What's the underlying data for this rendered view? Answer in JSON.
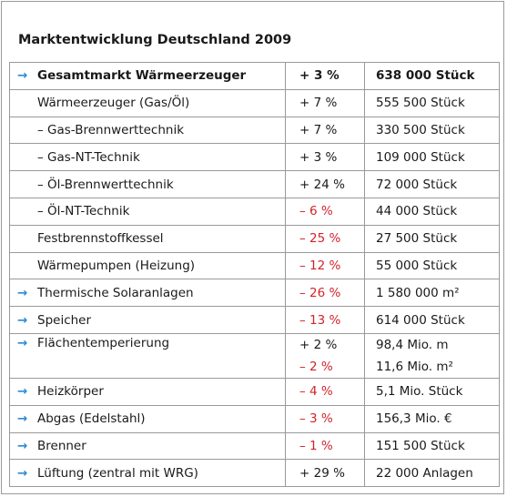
{
  "header": {
    "title": "Marktentwicklung Deutschland 2009"
  },
  "table": {
    "negative_color": "#d2232a",
    "arrow_color": "#2b8ad6",
    "rows": [
      {
        "label": "Gesamtmarkt Wärmeerzeuger",
        "arrow": true,
        "bold": true,
        "change": [
          "+ 3 %"
        ],
        "amount": [
          "638 000 Stück"
        ]
      },
      {
        "label": "Wärmeerzeuger (Gas/Öl)",
        "change": [
          "+ 7 %"
        ],
        "amount": [
          "555 500 Stück"
        ]
      },
      {
        "label": "– Gas-Brennwerttechnik",
        "change": [
          "+ 7 %"
        ],
        "amount": [
          "330 500 Stück"
        ]
      },
      {
        "label": "– Gas-NT-Technik",
        "change": [
          "+ 3 %"
        ],
        "amount": [
          "109 000 Stück"
        ]
      },
      {
        "label": "– Öl-Brennwerttechnik",
        "change": [
          "+ 24 %"
        ],
        "amount": [
          "72 000 Stück"
        ]
      },
      {
        "label": "– Öl-NT-Technik",
        "change": [
          "– 6 %"
        ],
        "negative": [
          true
        ],
        "amount": [
          "44 000 Stück"
        ]
      },
      {
        "label": "Festbrennstoffkessel",
        "change": [
          "– 25 %"
        ],
        "negative": [
          true
        ],
        "amount": [
          "27 500 Stück"
        ]
      },
      {
        "label": "Wärmepumpen (Heizung)",
        "change": [
          "– 12 %"
        ],
        "negative": [
          true
        ],
        "amount": [
          "55 000 Stück"
        ]
      },
      {
        "label": "Thermische Solaranlagen",
        "arrow": true,
        "change": [
          "– 26 %"
        ],
        "negative": [
          true
        ],
        "amount": [
          "1 580 000 m²"
        ]
      },
      {
        "label": "Speicher",
        "arrow": true,
        "change": [
          "– 13 %"
        ],
        "negative": [
          true
        ],
        "amount": [
          "614 000 Stück"
        ]
      },
      {
        "label": "Flächentemperierung",
        "arrow": true,
        "change": [
          "+ 2 %",
          "– 2 %"
        ],
        "negative": [
          false,
          true
        ],
        "amount": [
          "98,4 Mio. m",
          "11,6 Mio. m²"
        ]
      },
      {
        "label": "Heizkörper",
        "arrow": true,
        "change": [
          "– 4 %"
        ],
        "negative": [
          true
        ],
        "amount": [
          "5,1 Mio. Stück"
        ]
      },
      {
        "label": "Abgas (Edelstahl)",
        "arrow": true,
        "change": [
          "– 3 %"
        ],
        "negative": [
          true
        ],
        "amount": [
          "156,3 Mio. €"
        ]
      },
      {
        "label": "Brenner",
        "arrow": true,
        "change": [
          "– 1 %"
        ],
        "negative": [
          true
        ],
        "amount": [
          "151 500 Stück"
        ]
      },
      {
        "label": "Lüftung (zentral mit WRG)",
        "arrow": true,
        "change": [
          "+ 29 %"
        ],
        "amount": [
          "22 000 Anlagen"
        ]
      }
    ]
  }
}
